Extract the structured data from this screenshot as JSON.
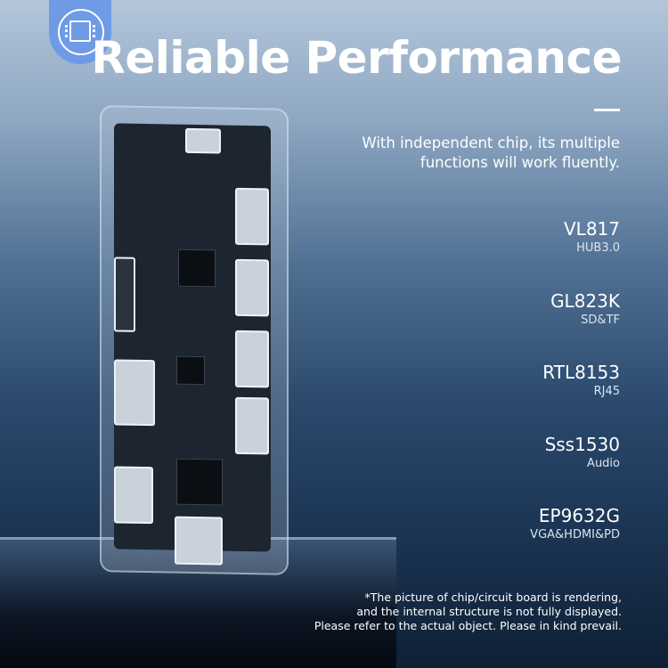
{
  "header": {
    "icon": "chip-icon",
    "title": "Reliable Performance",
    "subtitle": "With independent chip, its multiple functions will work fluently."
  },
  "chips": [
    {
      "name": "VL817",
      "desc": "HUB3.0"
    },
    {
      "name": "GL823K",
      "desc": "SD&TF"
    },
    {
      "name": "RTL8153",
      "desc": "RJ45"
    },
    {
      "name": "Sss1530",
      "desc": "Audio"
    },
    {
      "name": "EP9632G",
      "desc": "VGA&HDMI&PD"
    }
  ],
  "note": [
    "*The picture of chip/circuit board is rendering,",
    "and the internal structure is not fully displayed.",
    "Please refer to the actual object. Please in kind prevail."
  ],
  "colors": {
    "badge": "#6f9ae6",
    "text": "#ffffff"
  }
}
